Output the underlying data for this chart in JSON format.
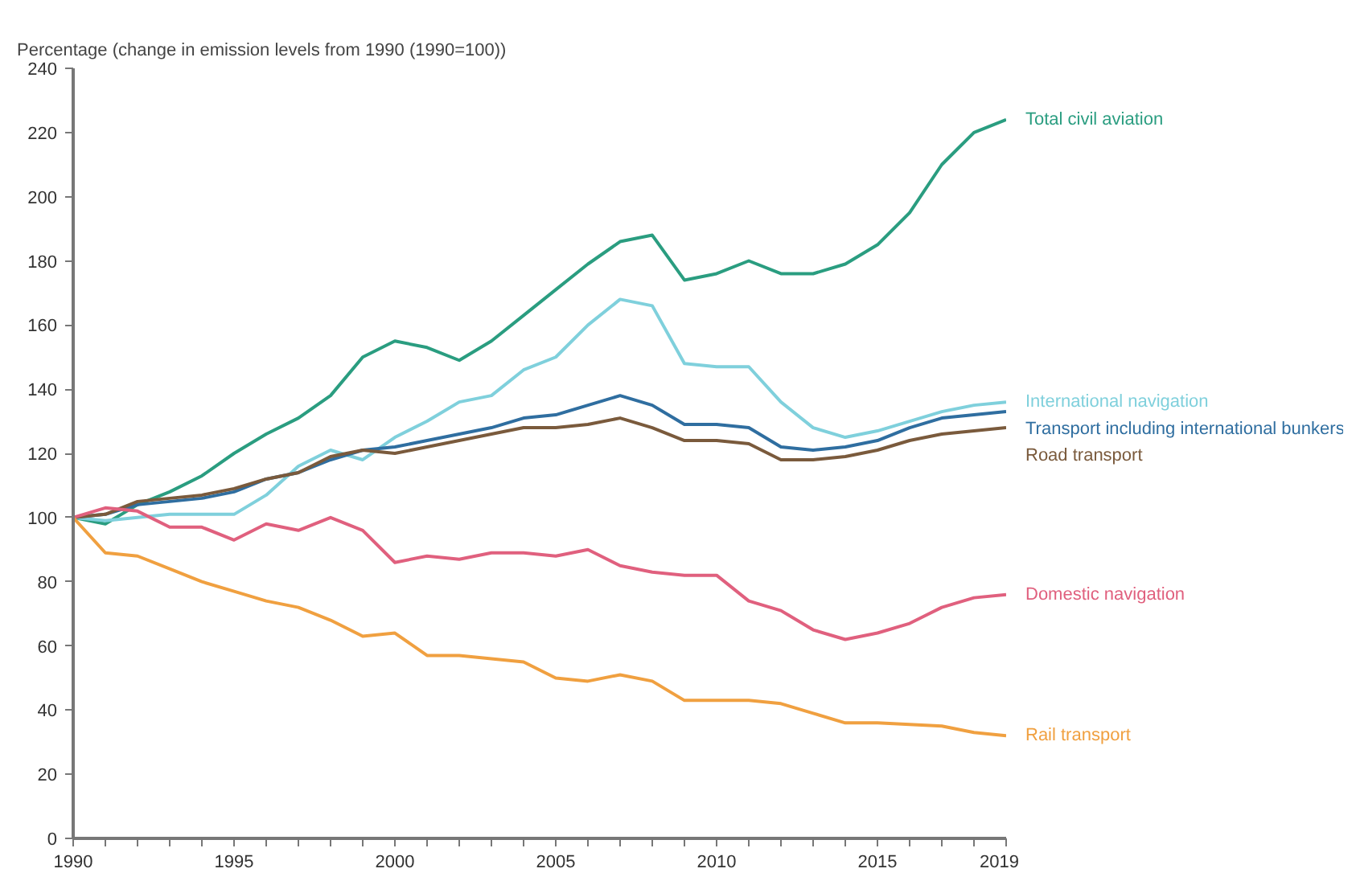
{
  "chart_data": {
    "type": "line",
    "ylabel": "Percentage (change in emission levels from 1990 (1990=100))",
    "x": [
      1990,
      1991,
      1992,
      1993,
      1994,
      1995,
      1996,
      1997,
      1998,
      1999,
      2000,
      2001,
      2002,
      2003,
      2004,
      2005,
      2006,
      2007,
      2008,
      2009,
      2010,
      2011,
      2012,
      2013,
      2014,
      2015,
      2016,
      2017,
      2018,
      2019
    ],
    "xlim": [
      1990,
      2019
    ],
    "xticks": [
      1990,
      1995,
      2000,
      2005,
      2010,
      2015,
      2019
    ],
    "ylim": [
      0,
      240
    ],
    "yticks": [
      0,
      20,
      40,
      60,
      80,
      100,
      120,
      140,
      160,
      180,
      200,
      220,
      240
    ],
    "line_style": "solid",
    "series": [
      {
        "name": "Total civil aviation",
        "color": "#2a9d80",
        "values": [
          100,
          98,
          104,
          108,
          113,
          120,
          126,
          131,
          138,
          150,
          155,
          153,
          149,
          155,
          163,
          171,
          179,
          186,
          188,
          174,
          176,
          180,
          176,
          176,
          179,
          185,
          195,
          210,
          220,
          224
        ]
      },
      {
        "name": "International navigation",
        "color": "#7fd0dc",
        "values": [
          100,
          99,
          100,
          101,
          101,
          101,
          107,
          116,
          121,
          118,
          125,
          130,
          136,
          138,
          146,
          150,
          160,
          168,
          166,
          148,
          147,
          147,
          136,
          128,
          125,
          127,
          130,
          133,
          135,
          136
        ]
      },
      {
        "name": "Transport including international bunkers",
        "color": "#2f6ea0",
        "values": [
          100,
          101,
          104,
          105,
          106,
          108,
          112,
          114,
          118,
          121,
          122,
          124,
          126,
          128,
          131,
          132,
          135,
          138,
          135,
          129,
          129,
          128,
          122,
          121,
          122,
          124,
          128,
          131,
          132,
          133
        ]
      },
      {
        "name": "Road transport",
        "color": "#7a5a3c",
        "values": [
          100,
          101,
          105,
          106,
          107,
          109,
          112,
          114,
          119,
          121,
          120,
          122,
          124,
          126,
          128,
          128,
          129,
          131,
          128,
          124,
          124,
          123,
          118,
          118,
          119,
          121,
          124,
          126,
          127,
          128
        ]
      },
      {
        "name": "Domestic navigation",
        "color": "#e0607e",
        "values": [
          100,
          103,
          102,
          97,
          97,
          93,
          98,
          96,
          100,
          96,
          86,
          88,
          87,
          89,
          89,
          88,
          90,
          85,
          83,
          82,
          82,
          74,
          71,
          65,
          62,
          64,
          67,
          72,
          75,
          76
        ]
      },
      {
        "name": "Rail transport",
        "color": "#f0a040",
        "values": [
          100,
          89,
          88,
          84,
          80,
          77,
          74,
          72,
          68,
          63,
          64,
          57,
          57,
          56,
          55,
          50,
          49,
          51,
          49,
          43,
          43,
          43,
          42,
          39,
          36,
          36,
          35.5,
          35,
          33,
          32
        ]
      }
    ]
  }
}
